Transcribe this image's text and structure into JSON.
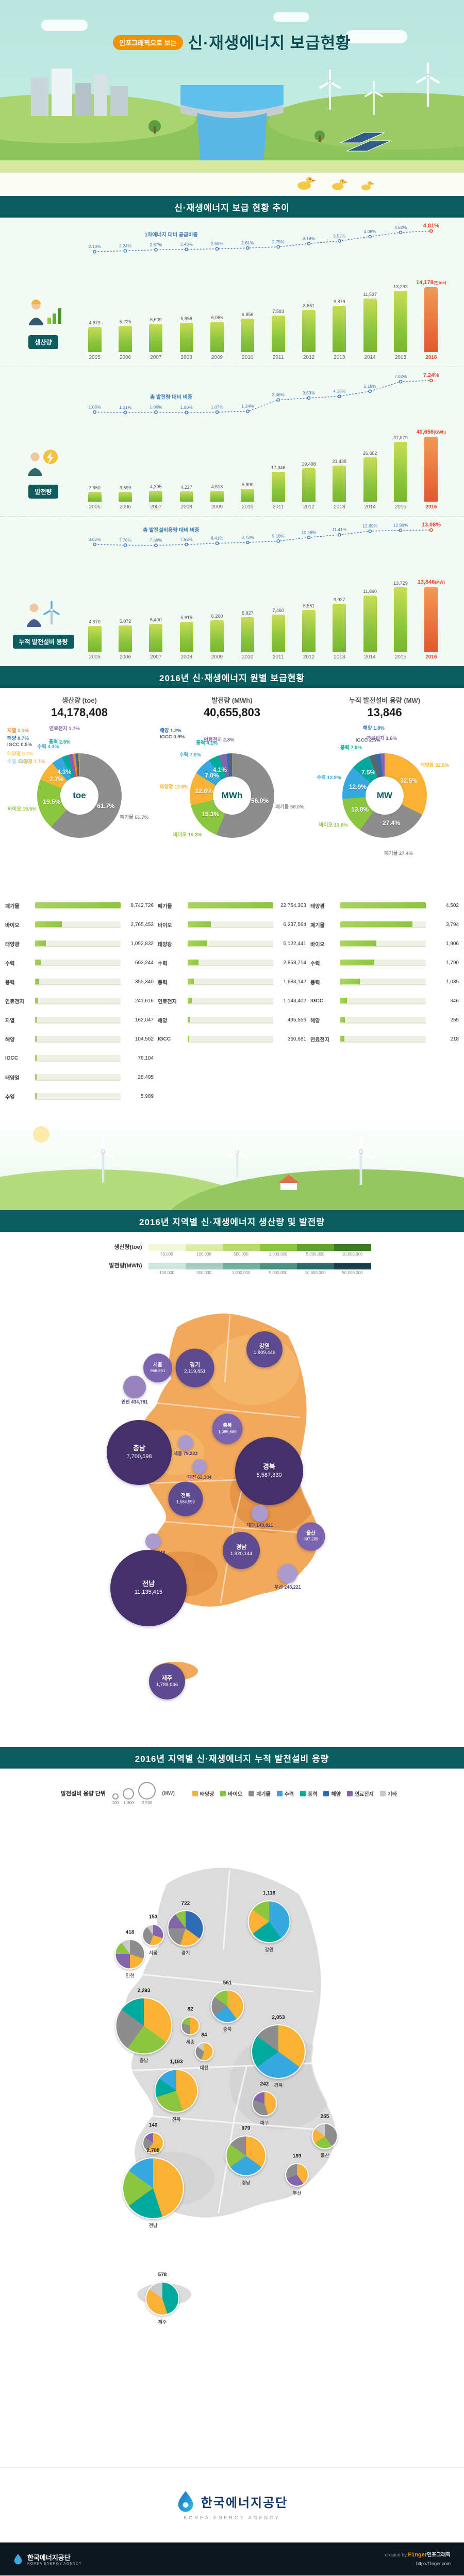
{
  "page": {
    "badge": "인포그래픽으로 보는",
    "title": "신·재생에너지 보급현황"
  },
  "sections": {
    "s1": {
      "header": "신·재생에너지 보급 현황 추이"
    },
    "s2": {
      "header": "2016년 신·재생에너지 원별 보급현황"
    },
    "s3": {
      "header": "2016년 지역별 신·재생에너지 생산량 및 발전량"
    },
    "s4": {
      "header": "2016년 지역별 신·재생에너지 누적 발전설비 용량"
    }
  },
  "section3": {
    "legends": [
      {
        "label": "생산량(toe)",
        "colors": [
          "#f0f7d4",
          "#d9ec9f",
          "#b7dc6a",
          "#8cc63e",
          "#5da32c",
          "#3a7d1f"
        ],
        "ticks": [
          "50,000",
          "100,000",
          "500,000",
          "1,000,000",
          "5,000,000",
          "10,000,000"
        ]
      },
      {
        "label": "발전량(MWh)",
        "colors": [
          "#d2e8df",
          "#a3cdbd",
          "#74b09c",
          "#4c8e81",
          "#2f6a68",
          "#173f4a"
        ],
        "ticks": [
          "100,000",
          "500,000",
          "1,000,000",
          "5,000,000",
          "10,000,000",
          "50,000,000"
        ]
      }
    ]
  },
  "section4": {
    "unit_label": "발전설비 용량 단위",
    "unit": "(MW)",
    "size_samples": [
      "100",
      "1,000",
      "2,500"
    ],
    "types": [
      {
        "name": "태양광",
        "color": "#f9b233"
      },
      {
        "name": "바이오",
        "color": "#8cc63e"
      },
      {
        "name": "폐기물",
        "color": "#8d8d8d"
      },
      {
        "name": "수력",
        "color": "#36a9e1"
      },
      {
        "name": "풍력",
        "color": "#00a99d"
      },
      {
        "name": "해양",
        "color": "#2d6db5"
      },
      {
        "name": "연료전지",
        "color": "#8465ac"
      },
      {
        "name": "기타",
        "color": "#c9c9c9"
      }
    ]
  },
  "footer": {
    "org": "한국에너지공단",
    "org_en": "KOREA ENERGY AGENCY",
    "credit_prefix": "created by",
    "credit_brand": "F1nger",
    "credit_suffix": "인포그래픽",
    "credit_url": "http://f1nger.com"
  },
  "chart_data": [
    {
      "id": "trend-production",
      "type": "bar",
      "title": "생산량",
      "unit": "천toe",
      "line_label": "1차에너지 대비 공급비중",
      "categories": [
        "2005",
        "2006",
        "2007",
        "2008",
        "2009",
        "2010",
        "2011",
        "2012",
        "2013",
        "2014",
        "2015",
        "2016"
      ],
      "values": [
        4879,
        5225,
        5609,
        5858,
        6086,
        6856,
        7583,
        8851,
        9879,
        11537,
        13293,
        14178
      ],
      "pct": [
        2.13,
        2.24,
        2.37,
        2.43,
        2.5,
        2.61,
        2.75,
        3.18,
        3.52,
        4.08,
        4.62,
        4.81
      ]
    },
    {
      "id": "trend-generation",
      "type": "bar",
      "title": "발전량",
      "unit": "GWh",
      "line_label": "총 발전량 대비 비중",
      "categories": [
        "2005",
        "2006",
        "2007",
        "2008",
        "2009",
        "2010",
        "2011",
        "2012",
        "2013",
        "2014",
        "2015",
        "2016"
      ],
      "values": [
        3950,
        3899,
        4395,
        4227,
        4618,
        5890,
        17346,
        19498,
        21438,
        26882,
        37079,
        40656
      ],
      "pct": [
        1.08,
        1.01,
        1.06,
        1.0,
        1.07,
        1.24,
        3.46,
        3.83,
        4.16,
        5.15,
        7.02,
        7.24
      ]
    },
    {
      "id": "trend-capacity",
      "type": "bar",
      "title": "누적 발전설비 용량",
      "unit": "MW",
      "line_label": "총 발전설비용량 대비 비중",
      "categories": [
        "2005",
        "2006",
        "2007",
        "2008",
        "2009",
        "2010",
        "2011",
        "2012",
        "2013",
        "2014",
        "2015",
        "2016"
      ],
      "values": [
        4970,
        5072,
        5400,
        5815,
        6260,
        6927,
        7460,
        8561,
        9937,
        11860,
        13729,
        13846
      ],
      "pct": [
        8.02,
        7.76,
        7.69,
        7.98,
        8.41,
        8.72,
        9.18,
        10.48,
        11.41,
        12.69,
        12.99,
        13.08
      ]
    },
    {
      "id": "share-production",
      "type": "pie",
      "title": "생산량 (toe)",
      "center": "toe",
      "total": 14178408,
      "slices": [
        {
          "name": "폐기물",
          "value": 8742726,
          "pct": 61.7,
          "color": "#8d8d8d"
        },
        {
          "name": "바이오",
          "value": 2765453,
          "pct": 19.5,
          "color": "#8cc63e"
        },
        {
          "name": "태양광",
          "value": 1092832,
          "pct": 7.7,
          "color": "#f9b233"
        },
        {
          "name": "수력",
          "value": 603244,
          "pct": 4.3,
          "color": "#36a9e1"
        },
        {
          "name": "풍력",
          "value": 355340,
          "pct": 2.5,
          "color": "#00a99d"
        },
        {
          "name": "연료전지",
          "value": 241616,
          "pct": 1.7,
          "color": "#8465ac"
        },
        {
          "name": "지열",
          "value": 162047,
          "pct": 1.1,
          "color": "#f08232"
        },
        {
          "name": "해양",
          "value": 104562,
          "pct": 0.7,
          "color": "#2d6db5"
        },
        {
          "name": "IGCC",
          "value": 76104,
          "pct": 0.5,
          "color": "#5f6368"
        },
        {
          "name": "태양열",
          "value": 28495,
          "pct": 0.2,
          "color": "#fcd04e"
        },
        {
          "name": "수열",
          "value": 5989,
          "pct": 0.0,
          "color": "#a8d8ef"
        }
      ]
    },
    {
      "id": "share-generation",
      "type": "pie",
      "title": "발전량 (MWh)",
      "center": "MWh",
      "total": 40655803,
      "slices": [
        {
          "name": "폐기물",
          "value": 22754303,
          "pct": 56.0,
          "color": "#8d8d8d"
        },
        {
          "name": "바이오",
          "value": 6237564,
          "pct": 15.3,
          "color": "#8cc63e"
        },
        {
          "name": "태양광",
          "value": 5122441,
          "pct": 12.6,
          "color": "#f9b233"
        },
        {
          "name": "수력",
          "value": 2858714,
          "pct": 7.0,
          "color": "#36a9e1"
        },
        {
          "name": "풍력",
          "value": 1683142,
          "pct": 4.1,
          "color": "#00a99d"
        },
        {
          "name": "연료전지",
          "value": 1143402,
          "pct": 2.8,
          "color": "#8465ac"
        },
        {
          "name": "해양",
          "value": 495556,
          "pct": 1.2,
          "color": "#2d6db5"
        },
        {
          "name": "IGCC",
          "value": 360681,
          "pct": 0.9,
          "color": "#5f6368"
        }
      ]
    },
    {
      "id": "share-capacity",
      "type": "pie",
      "title": "누적 발전설비 용량 (MW)",
      "center": "MW",
      "total": 13846,
      "slices": [
        {
          "name": "태양광",
          "value": 4502,
          "pct": 32.5,
          "color": "#f9b233"
        },
        {
          "name": "폐기물",
          "value": 3794,
          "pct": 27.4,
          "color": "#8d8d8d"
        },
        {
          "name": "바이오",
          "value": 1906,
          "pct": 13.8,
          "color": "#8cc63e"
        },
        {
          "name": "수력",
          "value": 1790,
          "pct": 12.9,
          "color": "#36a9e1"
        },
        {
          "name": "풍력",
          "value": 1035,
          "pct": 7.5,
          "color": "#00a99d"
        },
        {
          "name": "IGCC",
          "value": 346,
          "pct": 2.5,
          "color": "#5f6368"
        },
        {
          "name": "해양",
          "value": 255,
          "pct": 1.8,
          "color": "#2d6db5"
        },
        {
          "name": "연료전지",
          "value": 218,
          "pct": 1.6,
          "color": "#8465ac"
        }
      ]
    },
    {
      "id": "regional-generation",
      "type": "map-bubble",
      "title": "지역별 생산량 및 발전량",
      "unit": "MWh",
      "regions": [
        {
          "name": "서울",
          "value": 966861
        },
        {
          "name": "인천",
          "value": 434781
        },
        {
          "name": "경기",
          "value": 2119851
        },
        {
          "name": "강원",
          "value": 1809446
        },
        {
          "name": "충북",
          "value": 1085586
        },
        {
          "name": "충남",
          "value": 7700598
        },
        {
          "name": "세종",
          "value": 79223
        },
        {
          "name": "대전",
          "value": 63384
        },
        {
          "name": "전북",
          "value": 1584559
        },
        {
          "name": "광주",
          "value": 89748
        },
        {
          "name": "전남",
          "value": 11135415
        },
        {
          "name": "경북",
          "value": 8587830
        },
        {
          "name": "대구",
          "value": 143821
        },
        {
          "name": "울산",
          "value": 897289
        },
        {
          "name": "부산",
          "value": 248221
        },
        {
          "name": "경남",
          "value": 1920144
        },
        {
          "name": "제주",
          "value": 1789046
        }
      ]
    },
    {
      "id": "regional-capacity",
      "type": "map-pie",
      "title": "지역별 누적 발전설비 용량",
      "unit": "MW",
      "regions": [
        {
          "name": "서울",
          "value": 153,
          "mix": [
            [
              "연료전지",
              30
            ],
            [
              "태양광",
              25
            ],
            [
              "폐기물",
              35
            ],
            [
              "기타",
              10
            ]
          ]
        },
        {
          "name": "인천",
          "value": 418,
          "mix": [
            [
              "폐기물",
              30
            ],
            [
              "태양광",
              20
            ],
            [
              "연료전지",
              25
            ],
            [
              "바이오",
              15
            ],
            [
              "기타",
              10
            ]
          ]
        },
        {
          "name": "경기",
          "value": 722,
          "mix": [
            [
              "해양",
              35
            ],
            [
              "태양광",
              20
            ],
            [
              "폐기물",
              20
            ],
            [
              "연료전지",
              15
            ],
            [
              "바이오",
              10
            ]
          ]
        },
        {
          "name": "강원",
          "value": 1116,
          "mix": [
            [
              "수력",
              40
            ],
            [
              "풍력",
              25
            ],
            [
              "태양광",
              20
            ],
            [
              "바이오",
              15
            ]
          ]
        },
        {
          "name": "충북",
          "value": 561,
          "mix": [
            [
              "태양광",
              40
            ],
            [
              "수력",
              25
            ],
            [
              "폐기물",
              20
            ],
            [
              "바이오",
              15
            ]
          ]
        },
        {
          "name": "충남",
          "value": 2293,
          "mix": [
            [
              "태양광",
              35
            ],
            [
              "바이오",
              25
            ],
            [
              "폐기물",
              25
            ],
            [
              "풍력",
              15
            ]
          ]
        },
        {
          "name": "대전",
          "value": 84,
          "mix": [
            [
              "태양광",
              55
            ],
            [
              "폐기물",
              30
            ],
            [
              "기타",
              15
            ]
          ]
        },
        {
          "name": "세종",
          "value": 82,
          "mix": [
            [
              "태양광",
              50
            ],
            [
              "폐기물",
              30
            ],
            [
              "바이오",
              20
            ]
          ]
        },
        {
          "name": "전북",
          "value": 1183,
          "mix": [
            [
              "태양광",
              45
            ],
            [
              "바이오",
              25
            ],
            [
              "풍력",
              15
            ],
            [
              "수력",
              15
            ]
          ]
        },
        {
          "name": "광주",
          "value": 140,
          "mix": [
            [
              "태양광",
              60
            ],
            [
              "폐기물",
              25
            ],
            [
              "연료전지",
              15
            ]
          ]
        },
        {
          "name": "전남",
          "value": 2788,
          "mix": [
            [
              "태양광",
              45
            ],
            [
              "풍력",
              20
            ],
            [
              "바이오",
              20
            ],
            [
              "수력",
              15
            ]
          ]
        },
        {
          "name": "경북",
          "value": 2053,
          "mix": [
            [
              "태양광",
              35
            ],
            [
              "수력",
              30
            ],
            [
              "풍력",
              20
            ],
            [
              "폐기물",
              15
            ]
          ]
        },
        {
          "name": "대구",
          "value": 242,
          "mix": [
            [
              "태양광",
              45
            ],
            [
              "폐기물",
              35
            ],
            [
              "연료전지",
              20
            ]
          ]
        },
        {
          "name": "울산",
          "value": 265,
          "mix": [
            [
              "폐기물",
              40
            ],
            [
              "바이오",
              25
            ],
            [
              "태양광",
              20
            ],
            [
              "기타",
              15
            ]
          ]
        },
        {
          "name": "부산",
          "value": 189,
          "mix": [
            [
              "태양광",
              40
            ],
            [
              "연료전지",
              30
            ],
            [
              "폐기물",
              30
            ]
          ]
        },
        {
          "name": "경남",
          "value": 979,
          "mix": [
            [
              "태양광",
              35
            ],
            [
              "수력",
              30
            ],
            [
              "바이오",
              20
            ],
            [
              "폐기물",
              15
            ]
          ]
        },
        {
          "name": "제주",
          "value": 578,
          "mix": [
            [
              "풍력",
              45
            ],
            [
              "태양광",
              40
            ],
            [
              "기타",
              15
            ]
          ]
        }
      ]
    }
  ]
}
